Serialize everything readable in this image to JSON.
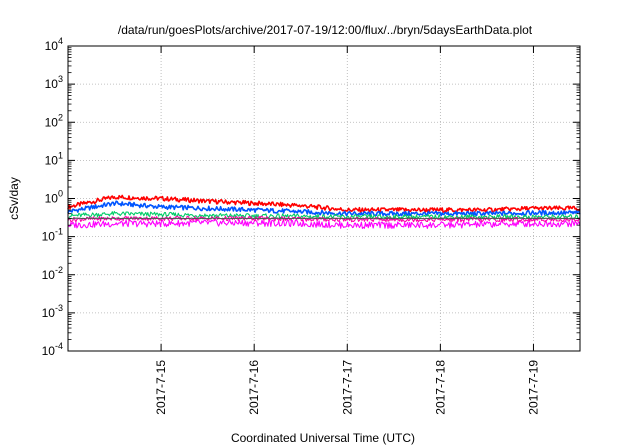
{
  "chart_data": {
    "type": "line",
    "title": "/data/run/goesPlots/archive/2017-07-19/12:00/flux/../bryn/5daysEarthData.plot",
    "xlabel": "Coordinated Universal Time (UTC)",
    "ylabel": "cSv/day",
    "yscale": "log",
    "ylim": [
      0.0001,
      10000
    ],
    "y_ticks": [
      {
        "base": "10",
        "exp": "-4"
      },
      {
        "base": "10",
        "exp": "-3"
      },
      {
        "base": "10",
        "exp": "-2"
      },
      {
        "base": "10",
        "exp": "-1"
      },
      {
        "base": "10",
        "exp": "0"
      },
      {
        "base": "10",
        "exp": "1"
      },
      {
        "base": "10",
        "exp": "2"
      },
      {
        "base": "10",
        "exp": "3"
      },
      {
        "base": "10",
        "exp": "4"
      }
    ],
    "xlim": [
      "2017-07-14T00:00",
      "2017-07-19T12:00"
    ],
    "x_ticks": [
      "2017-7-15",
      "2017-7-16",
      "2017-7-17",
      "2017-7-18",
      "2017-7-19"
    ],
    "grid": true,
    "series": [
      {
        "color": "#ff0000",
        "x": [
          "2017-07-14T00:00",
          "2017-07-14T12:00",
          "2017-07-15T00:00",
          "2017-07-15T12:00",
          "2017-07-16T00:00",
          "2017-07-16T12:00",
          "2017-07-17T00:00",
          "2017-07-17T12:00",
          "2017-07-18T00:00",
          "2017-07-18T12:00",
          "2017-07-19T00:00",
          "2017-07-19T12:00"
        ],
        "values": [
          0.6,
          1.1,
          1.0,
          0.85,
          0.75,
          0.65,
          0.5,
          0.5,
          0.5,
          0.5,
          0.55,
          0.55
        ]
      },
      {
        "color": "#0055ff",
        "x": [
          "2017-07-14T00:00",
          "2017-07-14T12:00",
          "2017-07-15T00:00",
          "2017-07-15T12:00",
          "2017-07-16T00:00",
          "2017-07-16T12:00",
          "2017-07-17T00:00",
          "2017-07-17T12:00",
          "2017-07-18T00:00",
          "2017-07-18T12:00",
          "2017-07-19T00:00",
          "2017-07-19T12:00"
        ],
        "values": [
          0.45,
          0.75,
          0.6,
          0.55,
          0.5,
          0.45,
          0.4,
          0.4,
          0.4,
          0.4,
          0.42,
          0.42
        ]
      },
      {
        "color": "#00cc66",
        "x": [
          "2017-07-14T00:00",
          "2017-07-14T12:00",
          "2017-07-15T00:00",
          "2017-07-15T12:00",
          "2017-07-16T00:00",
          "2017-07-16T12:00",
          "2017-07-17T00:00",
          "2017-07-17T12:00",
          "2017-07-18T00:00",
          "2017-07-18T12:00",
          "2017-07-19T00:00",
          "2017-07-19T12:00"
        ],
        "values": [
          0.35,
          0.4,
          0.38,
          0.36,
          0.35,
          0.34,
          0.33,
          0.33,
          0.33,
          0.33,
          0.33,
          0.33
        ]
      },
      {
        "color": "#ff00ff",
        "x": [
          "2017-07-14T00:00",
          "2017-07-14T12:00",
          "2017-07-15T00:00",
          "2017-07-15T12:00",
          "2017-07-16T00:00",
          "2017-07-16T12:00",
          "2017-07-17T00:00",
          "2017-07-17T12:00",
          "2017-07-18T00:00",
          "2017-07-18T12:00",
          "2017-07-19T00:00",
          "2017-07-19T12:00"
        ],
        "values": [
          0.2,
          0.22,
          0.22,
          0.23,
          0.23,
          0.22,
          0.2,
          0.2,
          0.2,
          0.21,
          0.22,
          0.22
        ]
      },
      {
        "color": "#ff00aa",
        "x": [
          "2017-07-14T00:00",
          "2017-07-14T12:00",
          "2017-07-15T00:00",
          "2017-07-15T12:00",
          "2017-07-16T00:00",
          "2017-07-16T12:00",
          "2017-07-17T00:00",
          "2017-07-17T12:00",
          "2017-07-18T00:00",
          "2017-07-18T12:00",
          "2017-07-19T00:00",
          "2017-07-19T12:00"
        ],
        "values": [
          0.28,
          0.3,
          0.3,
          0.3,
          0.3,
          0.29,
          0.28,
          0.28,
          0.28,
          0.28,
          0.28,
          0.28
        ]
      },
      {
        "color": "#555555",
        "x": [
          "2017-07-14T00:00",
          "2017-07-14T12:00",
          "2017-07-15T00:00",
          "2017-07-15T12:00",
          "2017-07-16T00:00",
          "2017-07-16T12:00",
          "2017-07-17T00:00",
          "2017-07-17T12:00",
          "2017-07-18T00:00",
          "2017-07-18T12:00",
          "2017-07-19T00:00",
          "2017-07-19T12:00"
        ],
        "values": [
          0.3,
          0.3,
          0.3,
          0.3,
          0.3,
          0.3,
          0.3,
          0.3,
          0.3,
          0.3,
          0.3,
          0.3
        ]
      }
    ]
  }
}
